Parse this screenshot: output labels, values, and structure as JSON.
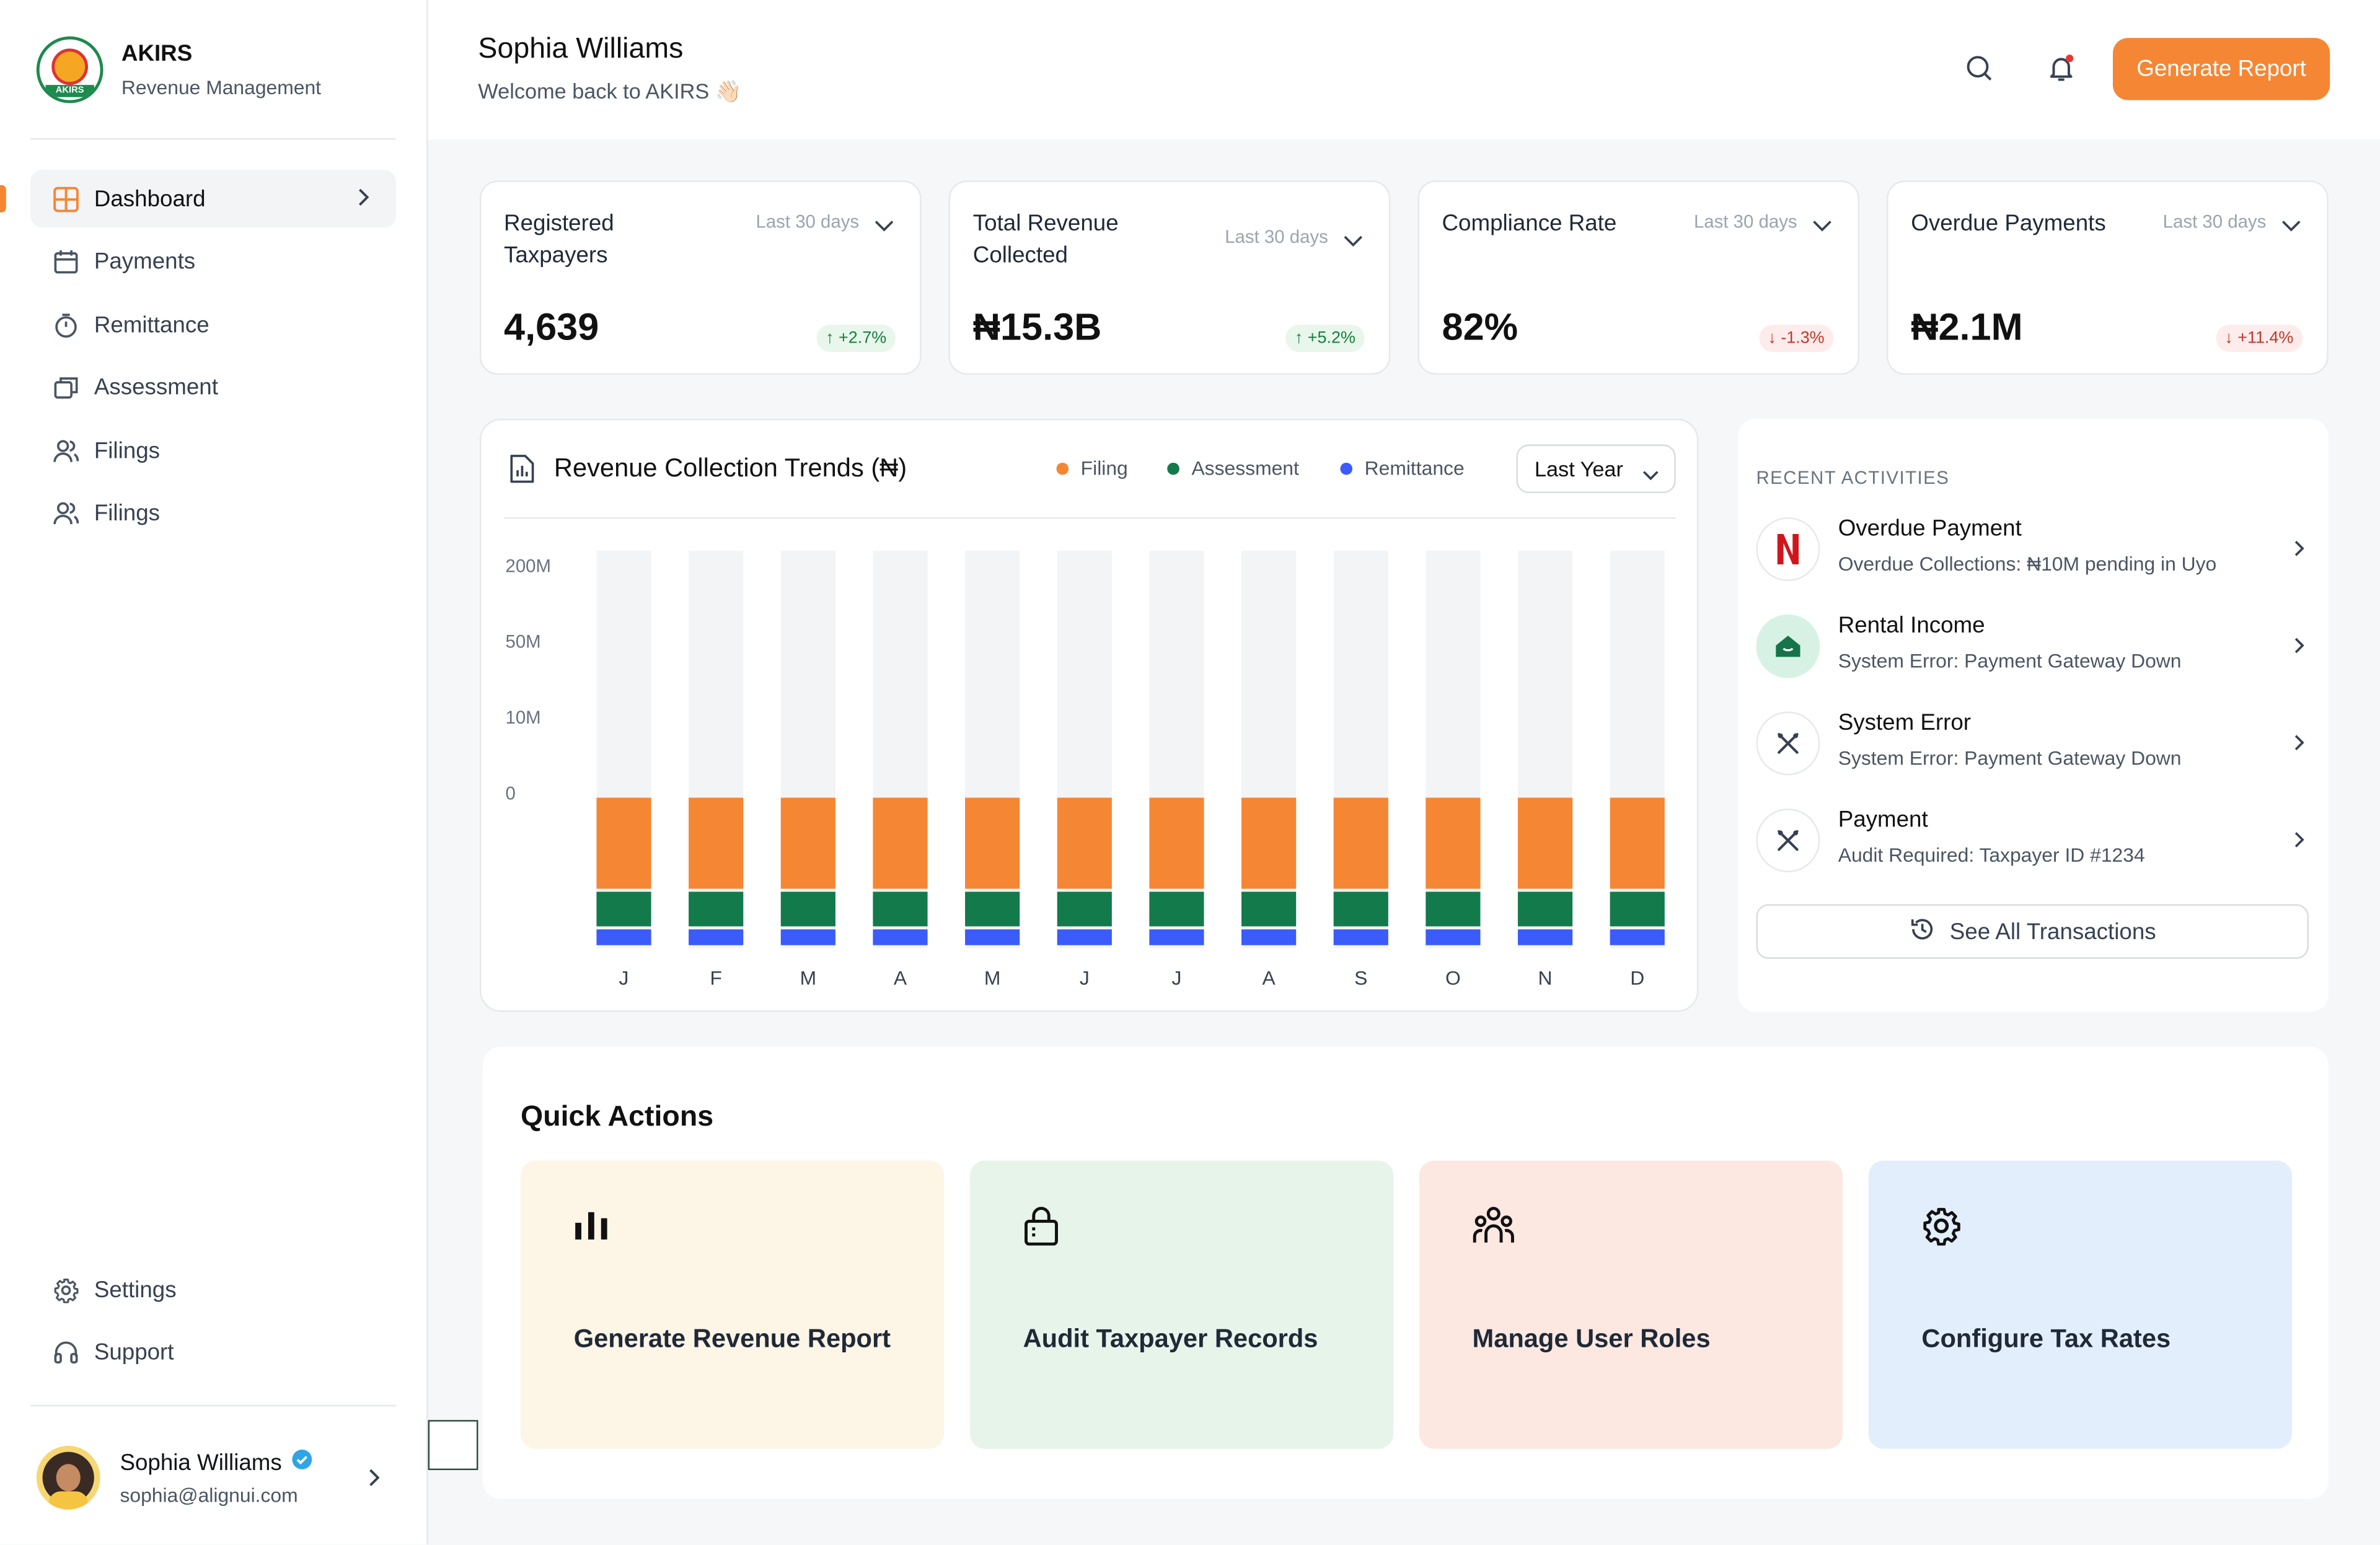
{
  "brand": {
    "title": "AKIRS",
    "subtitle": "Revenue Management",
    "logo_text": "AKIRS"
  },
  "sidebar": {
    "items": [
      {
        "label": "Dashboard",
        "icon": "grid-icon",
        "active": true
      },
      {
        "label": "Payments",
        "icon": "calendar-icon"
      },
      {
        "label": "Remittance",
        "icon": "timer-icon"
      },
      {
        "label": "Assessment",
        "icon": "layers-icon"
      },
      {
        "label": "Filings",
        "icon": "users-icon"
      },
      {
        "label": "Filings",
        "icon": "users-icon"
      }
    ],
    "bottom": [
      {
        "label": "Settings",
        "icon": "gear-icon"
      },
      {
        "label": "Support",
        "icon": "headset-icon"
      }
    ],
    "user": {
      "name": "Sophia Williams",
      "email": "sophia@alignui.com",
      "verified_icon": "verified-badge-icon"
    }
  },
  "header": {
    "name": "Sophia Williams",
    "welcome": "Welcome back to AKIRS 👋🏻",
    "search_icon": "search-icon",
    "bell_icon": "bell-icon",
    "button": "Generate Report"
  },
  "stats": [
    {
      "label": "Registered Taxpayers",
      "range": "Last 30 days",
      "value": "4,639",
      "change": "+2.7%",
      "direction": "up"
    },
    {
      "label": "Total Revenue Collected",
      "range": "Last 30 days",
      "value": "₦15.3B",
      "change": "+5.2%",
      "direction": "up"
    },
    {
      "label": "Compliance Rate",
      "range": "Last 30 days",
      "value": "82%",
      "change": "-1.3%",
      "direction": "down"
    },
    {
      "label": "Overdue Payments",
      "range": "Last 30 days",
      "value": "₦2.1M",
      "change": "+11.4%",
      "direction": "down"
    }
  ],
  "chart": {
    "title": "Revenue Collection Trends (₦)",
    "period": "Last Year",
    "legend": [
      {
        "name": "Filing",
        "color": "#f58634"
      },
      {
        "name": "Assessment",
        "color": "#137a4c"
      },
      {
        "name": "Remittance",
        "color": "#3b5bfa"
      }
    ]
  },
  "chart_data": {
    "type": "bar",
    "stacked": true,
    "categories": [
      "J",
      "F",
      "M",
      "A",
      "M",
      "J",
      "J",
      "A",
      "S",
      "O",
      "N",
      "D"
    ],
    "y_ticks": [
      "200M",
      "50M",
      "10M",
      "0"
    ],
    "series": [
      {
        "name": "Remittance",
        "color": "#3b5bfa",
        "values": [
          1,
          1,
          1,
          1,
          1,
          1,
          1,
          1,
          1,
          1,
          1,
          1
        ]
      },
      {
        "name": "Assessment",
        "color": "#137a4c",
        "values": [
          2,
          2,
          2,
          2,
          2,
          2,
          2,
          2,
          2,
          2,
          2,
          2
        ]
      },
      {
        "name": "Filing",
        "color": "#f58634",
        "values": [
          5,
          5,
          5,
          5,
          5,
          5,
          5,
          5,
          5,
          5,
          5,
          5
        ]
      }
    ],
    "background_track_color": "#f3f4f6",
    "grid": false
  },
  "recent": {
    "title": "RECENT ACTIVITIES",
    "items": [
      {
        "title": "Overdue Payment",
        "sub": "Overdue Collections: ₦10M pending in Uyo",
        "icon": "netflix-icon"
      },
      {
        "title": "Rental Income",
        "sub": "System Error: Payment Gateway Down",
        "icon": "home-icon"
      },
      {
        "title": "System Error",
        "sub": "System Error: Payment Gateway Down",
        "icon": "tools-icon"
      },
      {
        "title": "Payment",
        "sub": "Audit Required: Taxpayer ID #1234",
        "icon": "tools-icon"
      }
    ],
    "button": "See All Transactions"
  },
  "quick_actions": {
    "title": "Quick Actions",
    "items": [
      {
        "label": "Generate Revenue Report",
        "icon": "bar-chart-icon",
        "bg": "#fdf5e6"
      },
      {
        "label": "Audit Taxpayer Records",
        "icon": "lock-icon",
        "bg": "#e6f4ea"
      },
      {
        "label": "Manage User Roles",
        "icon": "user-group-icon",
        "bg": "#fde8e1"
      },
      {
        "label": "Configure Tax Rates",
        "icon": "gear-icon",
        "bg": "#e3eefc"
      }
    ]
  }
}
